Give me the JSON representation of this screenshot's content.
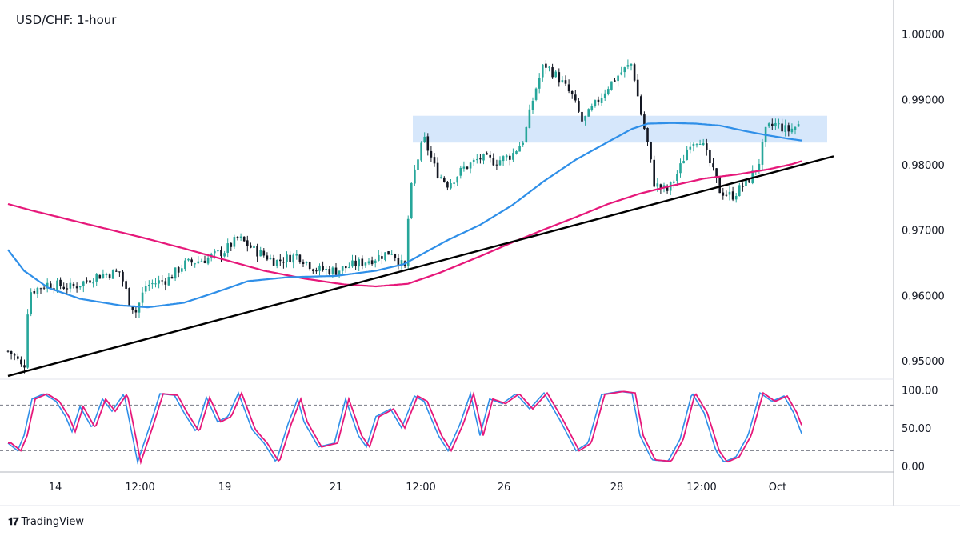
{
  "title": "USD/CHF: 1-hour",
  "branding": {
    "logo": "tradingview-logo-icon",
    "name": "TradingView"
  },
  "colors": {
    "bull": "#26a69a",
    "bear": "#131722",
    "ma_fast": "#2f8fe8",
    "ma_slow": "#e6187a",
    "trendline": "#000000",
    "zone": "#cfe3fa",
    "stoch_k": "#2f8fe8",
    "stoch_d": "#e6187a",
    "axis_line": "#b2b5be",
    "grid_dash": "#787b86"
  },
  "price_axis": {
    "labels": [
      "1.00000",
      "0.99000",
      "0.98000",
      "0.97000",
      "0.96000",
      "0.95000"
    ]
  },
  "stoch_axis": {
    "labels": [
      "100.00",
      "50.00",
      "0.00"
    ]
  },
  "time_axis": {
    "labels": [
      "14",
      "12:00",
      "19",
      "21",
      "12:00",
      "26",
      "28",
      "12:00",
      "Oct"
    ]
  },
  "chart_data": {
    "type": "candlestick",
    "symbol": "USD/CHF",
    "timeframe": "1-hour",
    "ylim": [
      0.9472,
      1.0046
    ],
    "x_range": [
      0,
      1040
    ],
    "price_anchors": [
      [
        0,
        0.9525
      ],
      [
        20,
        0.9505
      ],
      [
        30,
        0.9485
      ],
      [
        36,
        0.9605
      ],
      [
        60,
        0.9618
      ],
      [
        90,
        0.9612
      ],
      [
        120,
        0.963
      ],
      [
        150,
        0.9636
      ],
      [
        162,
        0.959
      ],
      [
        170,
        0.9575
      ],
      [
        182,
        0.9615
      ],
      [
        210,
        0.9625
      ],
      [
        230,
        0.9648
      ],
      [
        255,
        0.9655
      ],
      [
        280,
        0.9668
      ],
      [
        298,
        0.9688
      ],
      [
        320,
        0.9668
      ],
      [
        345,
        0.9652
      ],
      [
        372,
        0.9662
      ],
      [
        395,
        0.964
      ],
      [
        420,
        0.9638
      ],
      [
        445,
        0.9648
      ],
      [
        470,
        0.9658
      ],
      [
        490,
        0.9668
      ],
      [
        506,
        0.964
      ],
      [
        512,
        0.975
      ],
      [
        520,
        0.98
      ],
      [
        530,
        0.984
      ],
      [
        545,
        0.979
      ],
      [
        560,
        0.977
      ],
      [
        580,
        0.9795
      ],
      [
        600,
        0.981
      ],
      [
        620,
        0.9805
      ],
      [
        640,
        0.9815
      ],
      [
        655,
        0.984
      ],
      [
        668,
        0.991
      ],
      [
        680,
        0.9955
      ],
      [
        700,
        0.993
      ],
      [
        715,
        0.9905
      ],
      [
        728,
        0.9865
      ],
      [
        740,
        0.9885
      ],
      [
        760,
        0.992
      ],
      [
        775,
        0.994
      ],
      [
        790,
        0.9955
      ],
      [
        800,
        0.9885
      ],
      [
        810,
        0.983
      ],
      [
        818,
        0.977
      ],
      [
        835,
        0.976
      ],
      [
        850,
        0.9795
      ],
      [
        862,
        0.9835
      ],
      [
        875,
        0.984
      ],
      [
        888,
        0.98
      ],
      [
        900,
        0.976
      ],
      [
        915,
        0.9752
      ],
      [
        935,
        0.9775
      ],
      [
        948,
        0.98
      ],
      [
        958,
        0.9855
      ],
      [
        970,
        0.9862
      ],
      [
        985,
        0.9852
      ],
      [
        1000,
        0.9862
      ]
    ],
    "ma_fast": [
      [
        10,
        0.967
      ],
      [
        30,
        0.9638
      ],
      [
        60,
        0.9612
      ],
      [
        100,
        0.9595
      ],
      [
        150,
        0.9585
      ],
      [
        185,
        0.9582
      ],
      [
        230,
        0.9589
      ],
      [
        270,
        0.9605
      ],
      [
        310,
        0.9622
      ],
      [
        360,
        0.9628
      ],
      [
        420,
        0.963
      ],
      [
        470,
        0.9638
      ],
      [
        505,
        0.9648
      ],
      [
        530,
        0.9665
      ],
      [
        560,
        0.9685
      ],
      [
        600,
        0.9708
      ],
      [
        640,
        0.9738
      ],
      [
        680,
        0.9775
      ],
      [
        720,
        0.9808
      ],
      [
        760,
        0.9835
      ],
      [
        790,
        0.9855
      ],
      [
        810,
        0.9863
      ],
      [
        840,
        0.9864
      ],
      [
        870,
        0.9863
      ],
      [
        900,
        0.986
      ],
      [
        930,
        0.9852
      ],
      [
        960,
        0.9845
      ],
      [
        985,
        0.984
      ],
      [
        1003,
        0.9837
      ]
    ],
    "ma_slow": [
      [
        10,
        0.974
      ],
      [
        40,
        0.973
      ],
      [
        80,
        0.9718
      ],
      [
        130,
        0.9703
      ],
      [
        180,
        0.9688
      ],
      [
        230,
        0.9672
      ],
      [
        280,
        0.9655
      ],
      [
        330,
        0.9638
      ],
      [
        380,
        0.9626
      ],
      [
        430,
        0.9617
      ],
      [
        470,
        0.9614
      ],
      [
        510,
        0.9618
      ],
      [
        550,
        0.9635
      ],
      [
        600,
        0.966
      ],
      [
        640,
        0.9681
      ],
      [
        680,
        0.9701
      ],
      [
        720,
        0.972
      ],
      [
        760,
        0.974
      ],
      [
        800,
        0.9756
      ],
      [
        840,
        0.9768
      ],
      [
        880,
        0.9779
      ],
      [
        920,
        0.9785
      ],
      [
        960,
        0.9793
      ],
      [
        990,
        0.9801
      ],
      [
        1003,
        0.9806
      ]
    ],
    "trendline": [
      [
        10,
        0.9477
      ],
      [
        1042,
        0.9813
      ]
    ],
    "resistance_zone": {
      "x_start": 516,
      "x_end": 1034,
      "y_low": 0.9834,
      "y_high": 0.9875
    },
    "stochastic": {
      "ylim": [
        -8,
        112
      ],
      "levels": [
        80,
        20
      ],
      "k_period_px": 52,
      "k_anchors": [
        [
          10,
          30
        ],
        [
          22,
          20
        ],
        [
          30,
          40
        ],
        [
          40,
          88
        ],
        [
          55,
          95
        ],
        [
          70,
          85
        ],
        [
          82,
          65
        ],
        [
          90,
          45
        ],
        [
          100,
          78
        ],
        [
          115,
          50
        ],
        [
          128,
          88
        ],
        [
          140,
          72
        ],
        [
          155,
          95
        ],
        [
          172,
          5
        ],
        [
          188,
          55
        ],
        [
          200,
          95
        ],
        [
          218,
          93
        ],
        [
          230,
          70
        ],
        [
          245,
          45
        ],
        [
          258,
          90
        ],
        [
          272,
          58
        ],
        [
          285,
          65
        ],
        [
          298,
          96
        ],
        [
          315,
          48
        ],
        [
          330,
          30
        ],
        [
          345,
          5
        ],
        [
          360,
          55
        ],
        [
          372,
          88
        ],
        [
          380,
          58
        ],
        [
          398,
          25
        ],
        [
          418,
          30
        ],
        [
          432,
          88
        ],
        [
          448,
          40
        ],
        [
          458,
          25
        ],
        [
          470,
          65
        ],
        [
          488,
          75
        ],
        [
          502,
          50
        ],
        [
          518,
          92
        ],
        [
          530,
          85
        ],
        [
          548,
          40
        ],
        [
          560,
          20
        ],
        [
          575,
          55
        ],
        [
          588,
          95
        ],
        [
          600,
          40
        ],
        [
          612,
          88
        ],
        [
          628,
          82
        ],
        [
          645,
          95
        ],
        [
          662,
          75
        ],
        [
          680,
          96
        ],
        [
          700,
          60
        ],
        [
          720,
          20
        ],
        [
          735,
          30
        ],
        [
          752,
          94
        ],
        [
          775,
          98
        ],
        [
          790,
          96
        ],
        [
          800,
          40
        ],
        [
          815,
          8
        ],
        [
          835,
          6
        ],
        [
          850,
          35
        ],
        [
          865,
          96
        ],
        [
          880,
          70
        ],
        [
          895,
          20
        ],
        [
          905,
          5
        ],
        [
          920,
          12
        ],
        [
          935,
          40
        ],
        [
          950,
          96
        ],
        [
          965,
          85
        ],
        [
          980,
          92
        ],
        [
          992,
          70
        ],
        [
          1003,
          40
        ]
      ]
    }
  }
}
